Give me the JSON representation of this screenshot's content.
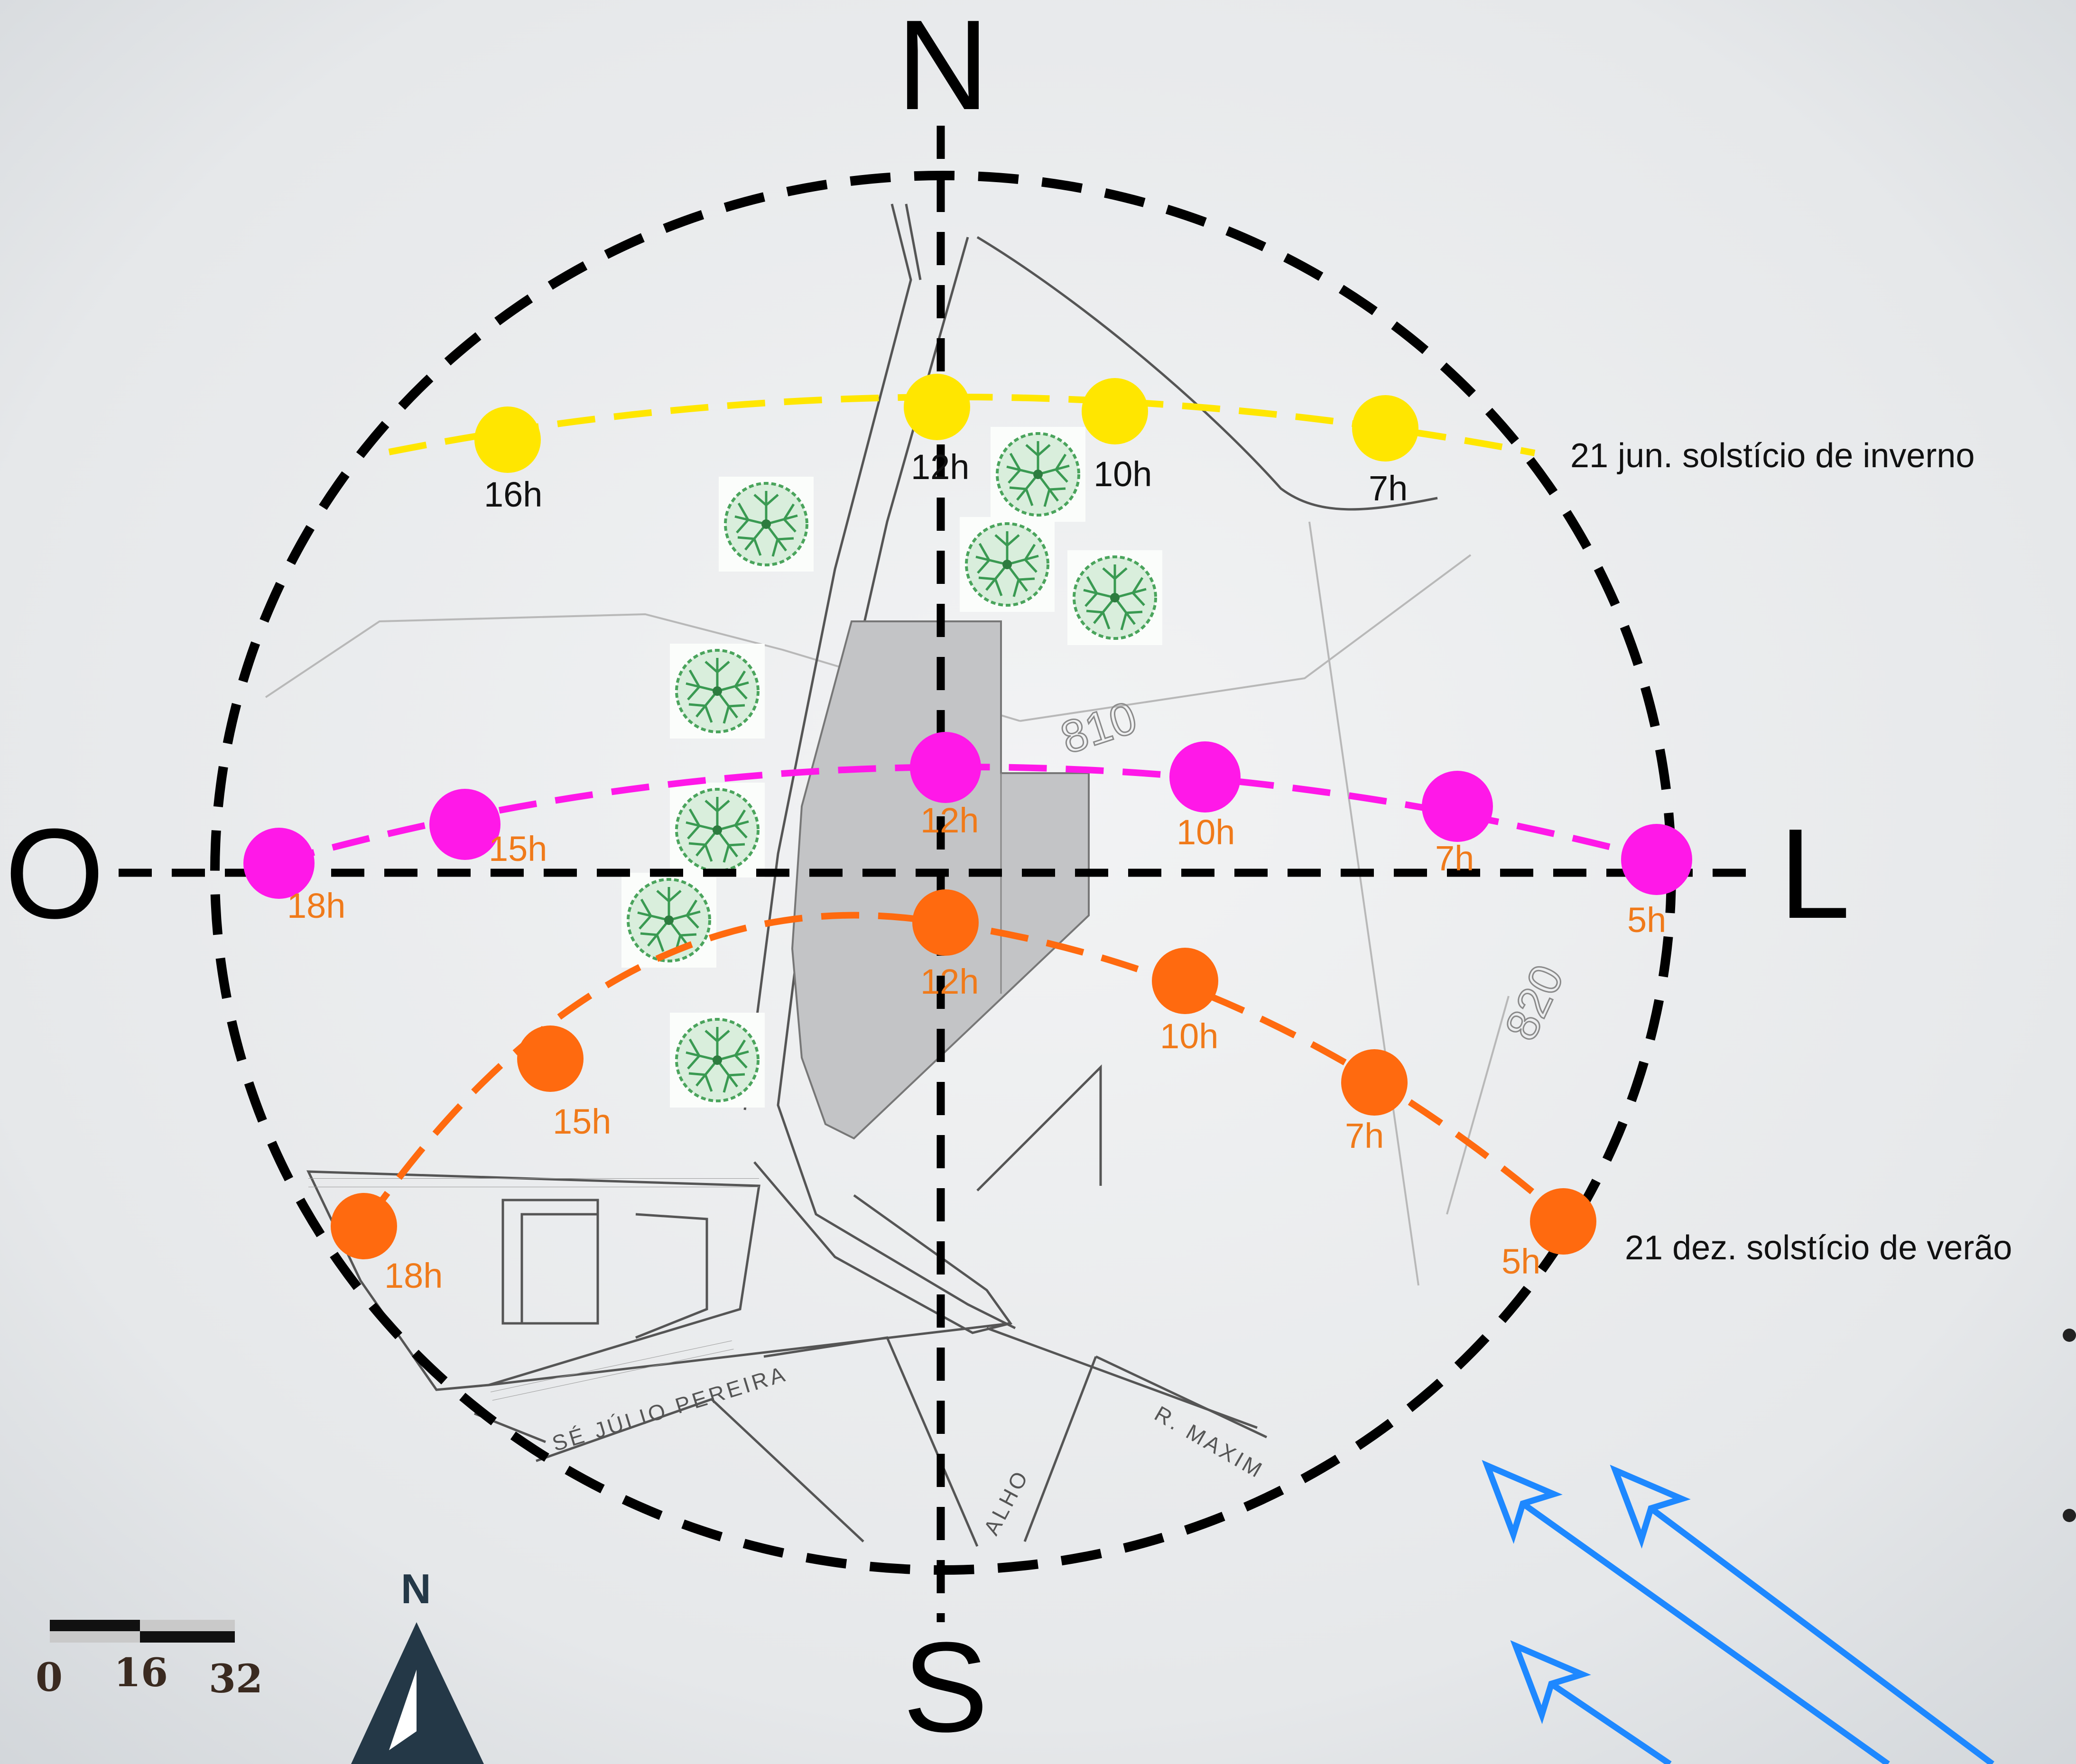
{
  "cardinals": {
    "north": "N",
    "south": "S",
    "west": "O",
    "east": "L"
  },
  "paths": [
    {
      "name": "21 jun. solstício de inverno",
      "color": "#ffe600",
      "label_color": "#111111",
      "points": [
        {
          "label": "16h"
        },
        {
          "label": "12h"
        },
        {
          "label": "10h"
        },
        {
          "label": "7h"
        }
      ]
    },
    {
      "name": "",
      "color": "#ff18e8",
      "label_color": "#f07a1a",
      "points": [
        {
          "label": "18h"
        },
        {
          "label": "15h"
        },
        {
          "label": "12h"
        },
        {
          "label": "10h"
        },
        {
          "label": "7h"
        },
        {
          "label": "5h"
        }
      ]
    },
    {
      "name": "21 dez. solstício de verão",
      "color": "#ff6a0f",
      "label_color": "#f07a1a",
      "points": [
        {
          "label": "18h"
        },
        {
          "label": "15h"
        },
        {
          "label": "12h"
        },
        {
          "label": "10h"
        },
        {
          "label": "7h"
        },
        {
          "label": "5h"
        }
      ]
    }
  ],
  "contours": [
    "810",
    "820"
  ],
  "streets": [
    "SÉ JÚLIO PEREIRA",
    "R. MAXIM",
    "ALHO"
  ],
  "scale_bar": {
    "ticks": [
      "0",
      "16",
      "32"
    ]
  },
  "north_arrow": {
    "letter": "N"
  },
  "wind_arrow_color": "#1e88ff",
  "circle_color": "#000000"
}
